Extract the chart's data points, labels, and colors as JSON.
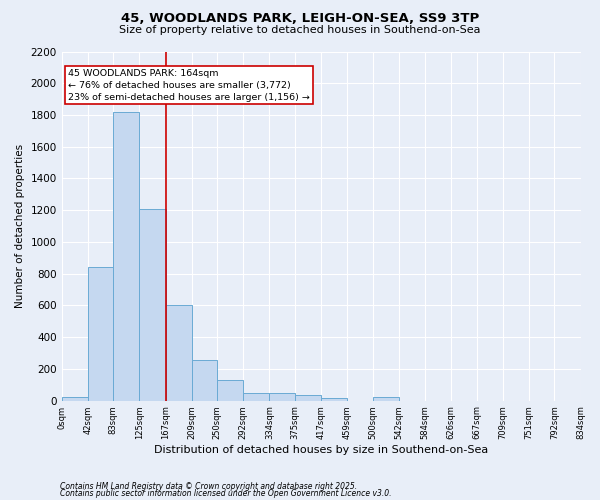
{
  "title1": "45, WOODLANDS PARK, LEIGH-ON-SEA, SS9 3TP",
  "title2": "Size of property relative to detached houses in Southend-on-Sea",
  "xlabel": "Distribution of detached houses by size in Southend-on-Sea",
  "ylabel": "Number of detached properties",
  "bar_edges": [
    0,
    42,
    83,
    125,
    167,
    209,
    250,
    292,
    334,
    375,
    417,
    459,
    500,
    542,
    584,
    626,
    667,
    709,
    751,
    792,
    834
  ],
  "bar_heights": [
    20,
    840,
    1820,
    1210,
    600,
    255,
    130,
    50,
    48,
    35,
    18,
    0,
    20,
    0,
    0,
    0,
    0,
    0,
    0,
    0
  ],
  "bar_color": "#c5d8f0",
  "bar_edge_color": "#6aaad4",
  "vline_x": 167,
  "vline_color": "#cc0000",
  "annotation_text": "45 WOODLANDS PARK: 164sqm\n← 76% of detached houses are smaller (3,772)\n23% of semi-detached houses are larger (1,156) →",
  "annotation_box_color": "#ffffff",
  "annotation_box_edge": "#cc0000",
  "ylim": [
    0,
    2200
  ],
  "yticks": [
    0,
    200,
    400,
    600,
    800,
    1000,
    1200,
    1400,
    1600,
    1800,
    2000,
    2200
  ],
  "tick_labels": [
    "0sqm",
    "42sqm",
    "83sqm",
    "125sqm",
    "167sqm",
    "209sqm",
    "250sqm",
    "292sqm",
    "334sqm",
    "375sqm",
    "417sqm",
    "459sqm",
    "500sqm",
    "542sqm",
    "584sqm",
    "626sqm",
    "667sqm",
    "709sqm",
    "751sqm",
    "792sqm",
    "834sqm"
  ],
  "background_color": "#e8eef8",
  "grid_color": "#ffffff",
  "footnote1": "Contains HM Land Registry data © Crown copyright and database right 2025.",
  "footnote2": "Contains public sector information licensed under the Open Government Licence v3.0."
}
